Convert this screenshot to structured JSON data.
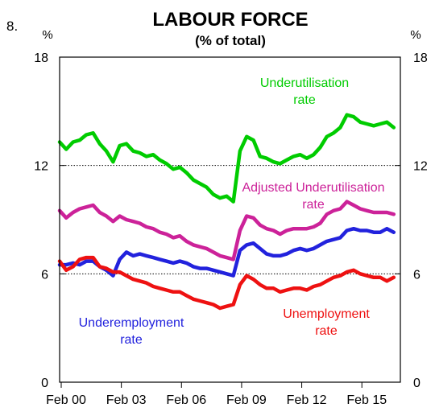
{
  "figure_number": "8.",
  "chart_data": {
    "type": "line",
    "title": "LABOUR FORCE",
    "subtitle": "(% of total)",
    "y_unit_left": "%",
    "y_unit_right": "%",
    "ylim": [
      0,
      18
    ],
    "y_ticks": [
      0,
      6,
      12,
      18
    ],
    "y_tick_labels": [
      "0",
      "6",
      "12",
      "18"
    ],
    "dotted_gridlines_at": [
      6,
      12
    ],
    "xlim": [
      2000.0,
      2017.0
    ],
    "x_ticks": [
      2000.08,
      2003.08,
      2006.08,
      2009.08,
      2012.08,
      2015.08
    ],
    "x_tick_labels": [
      "Feb 00",
      "Feb 03",
      "Feb 06",
      "Feb 09",
      "Feb 12",
      "Feb 15"
    ],
    "series": [
      {
        "name": "Underutilisation rate",
        "label_lines": [
          "Underutilisation",
          "rate"
        ],
        "color": "#00cc00",
        "x": [
          2000.0,
          2000.33,
          2000.67,
          2001.0,
          2001.33,
          2001.67,
          2002.0,
          2002.33,
          2002.67,
          2003.0,
          2003.33,
          2003.67,
          2004.0,
          2004.33,
          2004.67,
          2005.0,
          2005.33,
          2005.67,
          2006.0,
          2006.33,
          2006.67,
          2007.0,
          2007.33,
          2007.67,
          2008.0,
          2008.33,
          2008.67,
          2009.0,
          2009.33,
          2009.67,
          2010.0,
          2010.33,
          2010.67,
          2011.0,
          2011.33,
          2011.67,
          2012.0,
          2012.33,
          2012.67,
          2013.0,
          2013.33,
          2013.67,
          2014.0,
          2014.33,
          2014.67,
          2015.0,
          2015.33,
          2015.67,
          2016.0,
          2016.33,
          2016.67
        ],
        "values": [
          13.3,
          12.9,
          13.3,
          13.4,
          13.7,
          13.8,
          13.2,
          12.8,
          12.2,
          13.1,
          13.2,
          12.8,
          12.7,
          12.5,
          12.6,
          12.3,
          12.1,
          11.8,
          11.9,
          11.6,
          11.2,
          11.0,
          10.8,
          10.4,
          10.2,
          10.3,
          10.0,
          12.8,
          13.6,
          13.4,
          12.5,
          12.4,
          12.2,
          12.1,
          12.3,
          12.5,
          12.6,
          12.4,
          12.6,
          13.0,
          13.6,
          13.8,
          14.1,
          14.8,
          14.7,
          14.4,
          14.3,
          14.2,
          14.3,
          14.4,
          14.1
        ]
      },
      {
        "name": "Adjusted Underutilisation rate",
        "label_lines": [
          "Adjusted Underutilisation",
          "rate"
        ],
        "color": "#cc2299",
        "x": [
          2000.0,
          2000.33,
          2000.67,
          2001.0,
          2001.33,
          2001.67,
          2002.0,
          2002.33,
          2002.67,
          2003.0,
          2003.33,
          2003.67,
          2004.0,
          2004.33,
          2004.67,
          2005.0,
          2005.33,
          2005.67,
          2006.0,
          2006.33,
          2006.67,
          2007.0,
          2007.33,
          2007.67,
          2008.0,
          2008.33,
          2008.67,
          2009.0,
          2009.33,
          2009.67,
          2010.0,
          2010.33,
          2010.67,
          2011.0,
          2011.33,
          2011.67,
          2012.0,
          2012.33,
          2012.67,
          2013.0,
          2013.33,
          2013.67,
          2014.0,
          2014.33,
          2014.67,
          2015.0,
          2015.33,
          2015.67,
          2016.0,
          2016.33,
          2016.67
        ],
        "values": [
          9.5,
          9.1,
          9.4,
          9.6,
          9.7,
          9.8,
          9.4,
          9.2,
          8.9,
          9.2,
          9.0,
          8.9,
          8.8,
          8.6,
          8.5,
          8.3,
          8.2,
          8.0,
          8.1,
          7.8,
          7.6,
          7.5,
          7.4,
          7.2,
          7.0,
          6.9,
          6.8,
          8.4,
          9.2,
          9.1,
          8.7,
          8.5,
          8.4,
          8.2,
          8.4,
          8.5,
          8.5,
          8.5,
          8.6,
          8.8,
          9.3,
          9.5,
          9.6,
          10.0,
          9.8,
          9.6,
          9.5,
          9.4,
          9.4,
          9.4,
          9.3
        ]
      },
      {
        "name": "Underemployment rate",
        "label_lines": [
          "Underemployment",
          "rate"
        ],
        "color": "#2222dd",
        "x": [
          2000.0,
          2000.33,
          2000.67,
          2001.0,
          2001.33,
          2001.67,
          2002.0,
          2002.33,
          2002.67,
          2003.0,
          2003.33,
          2003.67,
          2004.0,
          2004.33,
          2004.67,
          2005.0,
          2005.33,
          2005.67,
          2006.0,
          2006.33,
          2006.67,
          2007.0,
          2007.33,
          2007.67,
          2008.0,
          2008.33,
          2008.67,
          2009.0,
          2009.33,
          2009.67,
          2010.0,
          2010.33,
          2010.67,
          2011.0,
          2011.33,
          2011.67,
          2012.0,
          2012.33,
          2012.67,
          2013.0,
          2013.33,
          2013.67,
          2014.0,
          2014.33,
          2014.67,
          2015.0,
          2015.33,
          2015.67,
          2016.0,
          2016.33,
          2016.67
        ],
        "values": [
          6.5,
          6.5,
          6.6,
          6.5,
          6.7,
          6.7,
          6.4,
          6.2,
          5.9,
          6.8,
          7.2,
          7.0,
          7.1,
          7.0,
          6.9,
          6.8,
          6.7,
          6.6,
          6.7,
          6.6,
          6.4,
          6.3,
          6.3,
          6.2,
          6.1,
          6.0,
          5.9,
          7.3,
          7.6,
          7.7,
          7.4,
          7.1,
          7.0,
          7.0,
          7.1,
          7.3,
          7.4,
          7.3,
          7.4,
          7.6,
          7.8,
          7.9,
          8.0,
          8.4,
          8.5,
          8.4,
          8.4,
          8.3,
          8.3,
          8.5,
          8.3
        ]
      },
      {
        "name": "Unemployment rate",
        "label_lines": [
          "Unemployment",
          "rate"
        ],
        "color": "#ee1111",
        "x": [
          2000.0,
          2000.33,
          2000.67,
          2001.0,
          2001.33,
          2001.67,
          2002.0,
          2002.33,
          2002.67,
          2003.0,
          2003.33,
          2003.67,
          2004.0,
          2004.33,
          2004.67,
          2005.0,
          2005.33,
          2005.67,
          2006.0,
          2006.33,
          2006.67,
          2007.0,
          2007.33,
          2007.67,
          2008.0,
          2008.33,
          2008.67,
          2009.0,
          2009.33,
          2009.67,
          2010.0,
          2010.33,
          2010.67,
          2011.0,
          2011.33,
          2011.67,
          2012.0,
          2012.33,
          2012.67,
          2013.0,
          2013.33,
          2013.67,
          2014.0,
          2014.33,
          2014.67,
          2015.0,
          2015.33,
          2015.67,
          2016.0,
          2016.33,
          2016.67
        ],
        "values": [
          6.7,
          6.2,
          6.4,
          6.8,
          6.9,
          6.9,
          6.4,
          6.3,
          6.1,
          6.1,
          5.9,
          5.7,
          5.6,
          5.5,
          5.3,
          5.2,
          5.1,
          5.0,
          5.0,
          4.8,
          4.6,
          4.5,
          4.4,
          4.3,
          4.1,
          4.2,
          4.3,
          5.4,
          5.9,
          5.7,
          5.4,
          5.2,
          5.2,
          5.0,
          5.1,
          5.2,
          5.2,
          5.1,
          5.3,
          5.4,
          5.6,
          5.8,
          5.9,
          6.1,
          6.2,
          6.0,
          5.9,
          5.8,
          5.8,
          5.6,
          5.8
        ]
      }
    ],
    "legend_placement": "inline labels"
  }
}
